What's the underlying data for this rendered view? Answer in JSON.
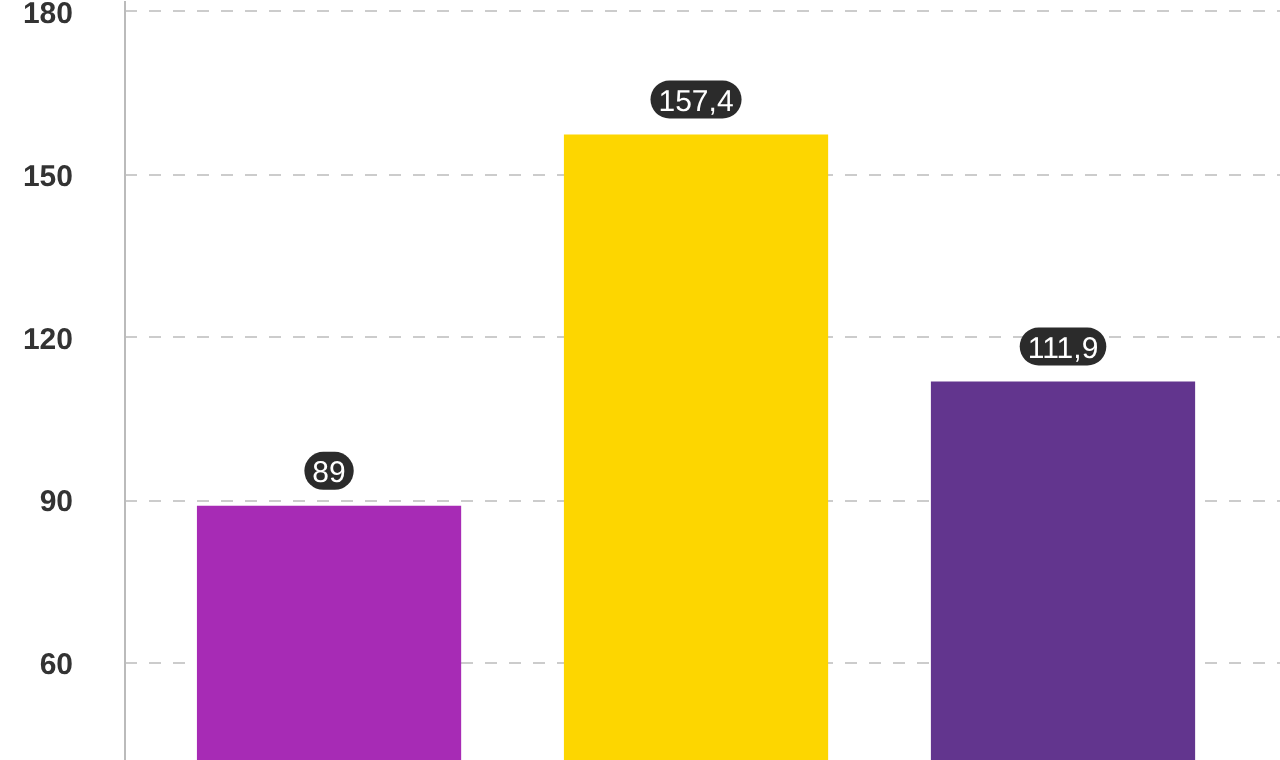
{
  "chart_data": {
    "type": "bar",
    "categories": [
      null,
      null,
      null
    ],
    "values": [
      89,
      157.4,
      111.9
    ],
    "colors": [
      "#a72bb5",
      "#fdd600",
      "#62358e"
    ],
    "value_labels": [
      "89",
      "157,4",
      "111,9"
    ],
    "ylim": [
      42,
      182
    ],
    "yticks": [
      60,
      90,
      120,
      150,
      180
    ],
    "grid": "y",
    "tick_labels": "y"
  }
}
